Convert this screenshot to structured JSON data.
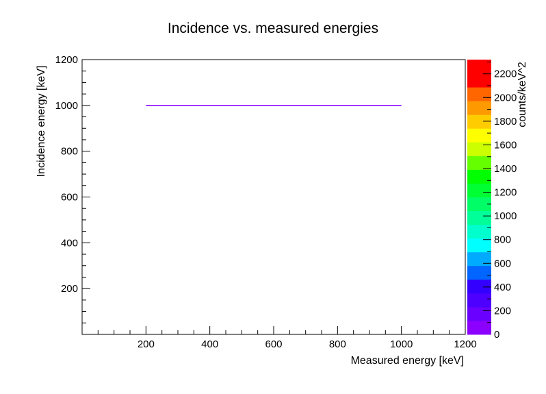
{
  "chart_data": {
    "type": "heatmap",
    "title": "Incidence vs. measured energies",
    "xlabel": "Measured energy [keV]",
    "ylabel": "Incidence energy [keV]",
    "zlabel": "counts/keV^2",
    "xlim": [
      0,
      1200
    ],
    "ylim": [
      0,
      1200
    ],
    "zlim": [
      0,
      2320
    ],
    "x_ticks": [
      200,
      400,
      600,
      800,
      1000,
      1200
    ],
    "y_ticks": [
      200,
      400,
      600,
      800,
      1000,
      1200
    ],
    "z_ticks": [
      0,
      200,
      400,
      600,
      800,
      1000,
      1200,
      1400,
      1600,
      1800,
      2000,
      2200
    ],
    "palette": [
      "#8b00ff",
      "#6a00ff",
      "#4d00ff",
      "#3300ff",
      "#0066ff",
      "#00aaff",
      "#00ffff",
      "#00ffcc",
      "#00ff99",
      "#00ff66",
      "#00ff33",
      "#00ff00",
      "#66ff00",
      "#ccff00",
      "#ffff00",
      "#ffcc00",
      "#ff9900",
      "#ff6600",
      "#ff0000",
      "#ff0000"
    ],
    "band": {
      "incidence_energy": 1000,
      "measured_from": 200,
      "measured_to": 1000,
      "color": "#8b00ff"
    }
  }
}
